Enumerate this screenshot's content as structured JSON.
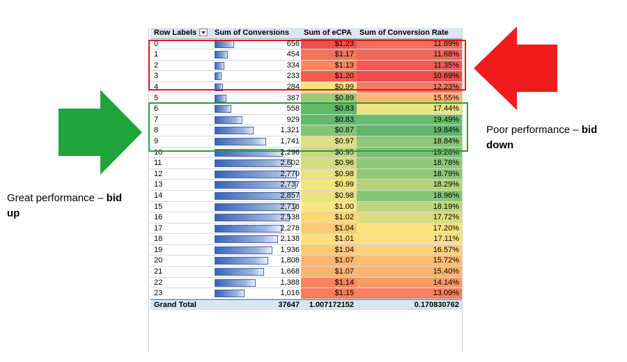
{
  "pivot": {
    "headers": [
      "Row Labels",
      "Sum of Conversions",
      "Sum of eCPA",
      "Sum of Conversion Rate"
    ],
    "rows": [
      {
        "label": "0",
        "conversions": "656",
        "ecpa": "$1.23",
        "rate": "11.89%",
        "conv_value": 656,
        "ecpa_color": "#f0504a",
        "rate_color": "#f36e5c"
      },
      {
        "label": "1",
        "conversions": "454",
        "ecpa": "$1.17",
        "rate": "11.68%",
        "conv_value": 454,
        "ecpa_color": "#f7735b",
        "rate_color": "#f2655a"
      },
      {
        "label": "2",
        "conversions": "334",
        "ecpa": "$1.13",
        "rate": "11.35%",
        "conv_value": 334,
        "ecpa_color": "#f98a5f",
        "rate_color": "#f15c57"
      },
      {
        "label": "3",
        "conversions": "233",
        "ecpa": "$1.20",
        "rate": "10.69%",
        "conv_value": 233,
        "ecpa_color": "#f25b50",
        "rate_color": "#ef4b4d"
      },
      {
        "label": "4",
        "conversions": "284",
        "ecpa": "$0.99",
        "rate": "12.23%",
        "conv_value": 284,
        "ecpa_color": "#f6e57f",
        "rate_color": "#f57d61"
      },
      {
        "label": "5",
        "conversions": "387",
        "ecpa": "$0.89",
        "rate": "15.55%",
        "conv_value": 387,
        "ecpa_color": "#98cc79",
        "rate_color": "#fbba74"
      },
      {
        "label": "6",
        "conversions": "558",
        "ecpa": "$0.83",
        "rate": "17.44%",
        "conv_value": 558,
        "ecpa_color": "#63b86b",
        "rate_color": "#ebe583"
      },
      {
        "label": "7",
        "conversions": "929",
        "ecpa": "$0.83",
        "rate": "19.49%",
        "conv_value": 929,
        "ecpa_color": "#63b86b",
        "rate_color": "#6bbc6d"
      },
      {
        "label": "8",
        "conversions": "1,321",
        "ecpa": "$0.87",
        "rate": "19.84%",
        "conv_value": 1321,
        "ecpa_color": "#86c574",
        "rate_color": "#5fb66a"
      },
      {
        "label": "9",
        "conversions": "1,741",
        "ecpa": "$0.97",
        "rate": "18.84%",
        "conv_value": 1741,
        "ecpa_color": "#e0df80",
        "rate_color": "#8cc676"
      },
      {
        "label": "10",
        "conversions": "2,296",
        "ecpa": "$0.95",
        "rate": "19.20%",
        "conv_value": 2296,
        "ecpa_color": "#c8d87d",
        "rate_color": "#7bc171"
      },
      {
        "label": "11",
        "conversions": "2,602",
        "ecpa": "$0.96",
        "rate": "18.78%",
        "conv_value": 2602,
        "ecpa_color": "#d4dc7f",
        "rate_color": "#90c877"
      },
      {
        "label": "12",
        "conversions": "2,770",
        "ecpa": "$0.98",
        "rate": "18.79%",
        "conv_value": 2770,
        "ecpa_color": "#ece281",
        "rate_color": "#8fc877"
      },
      {
        "label": "13",
        "conversions": "2,737",
        "ecpa": "$0.99",
        "rate": "18.29%",
        "conv_value": 2737,
        "ecpa_color": "#f6e57f",
        "rate_color": "#b5d37c"
      },
      {
        "label": "14",
        "conversions": "2,857",
        "ecpa": "$0.98",
        "rate": "18.96%",
        "conv_value": 2857,
        "ecpa_color": "#ece281",
        "rate_color": "#86c574"
      },
      {
        "label": "15",
        "conversions": "2,718",
        "ecpa": "$1.00",
        "rate": "18.19%",
        "conv_value": 2718,
        "ecpa_color": "#fde67f",
        "rate_color": "#bdd67d"
      },
      {
        "label": "16",
        "conversions": "2,538",
        "ecpa": "$1.02",
        "rate": "17.72%",
        "conv_value": 2538,
        "ecpa_color": "#fdd879",
        "rate_color": "#d9de80"
      },
      {
        "label": "17",
        "conversions": "2,278",
        "ecpa": "$1.04",
        "rate": "17.20%",
        "conv_value": 2278,
        "ecpa_color": "#fcc976",
        "rate_color": "#fde381"
      },
      {
        "label": "18",
        "conversions": "2,138",
        "ecpa": "$1.01",
        "rate": "17.11%",
        "conv_value": 2138,
        "ecpa_color": "#fedf7c",
        "rate_color": "#fde17f"
      },
      {
        "label": "19",
        "conversions": "1,936",
        "ecpa": "$1.04",
        "rate": "16.57%",
        "conv_value": 1936,
        "ecpa_color": "#fcc976",
        "rate_color": "#fcd17a"
      },
      {
        "label": "20",
        "conversions": "1,808",
        "ecpa": "$1.07",
        "rate": "15.72%",
        "conv_value": 1808,
        "ecpa_color": "#fbb570",
        "rate_color": "#fbbd74"
      },
      {
        "label": "21",
        "conversions": "1,668",
        "ecpa": "$1.07",
        "rate": "15.40%",
        "conv_value": 1668,
        "ecpa_color": "#fbb570",
        "rate_color": "#fab571"
      },
      {
        "label": "22",
        "conversions": "1,388",
        "ecpa": "$1.14",
        "rate": "14.14%",
        "conv_value": 1388,
        "ecpa_color": "#f8845d",
        "rate_color": "#f89b66"
      },
      {
        "label": "23",
        "conversions": "1,016",
        "ecpa": "$1.15",
        "rate": "13.09%",
        "conv_value": 1016,
        "ecpa_color": "#f87d5c",
        "rate_color": "#f68160"
      }
    ],
    "total": {
      "label": "Grand Total",
      "conversions": "37647",
      "ecpa": "1.007172152",
      "rate": "0.170830762"
    },
    "bar_max": 2857
  },
  "annotations": {
    "right": {
      "normal": "Poor performance – ",
      "bold1": "bid",
      "bold2": "down",
      "arrow_color": "#ee1c1c",
      "box_color": "#e5121c"
    },
    "left": {
      "normal": "Great performance – ",
      "bold1": "bid",
      "bold2": "up",
      "arrow_color": "#1ea43b",
      "box_color": "#1fa13a"
    }
  }
}
